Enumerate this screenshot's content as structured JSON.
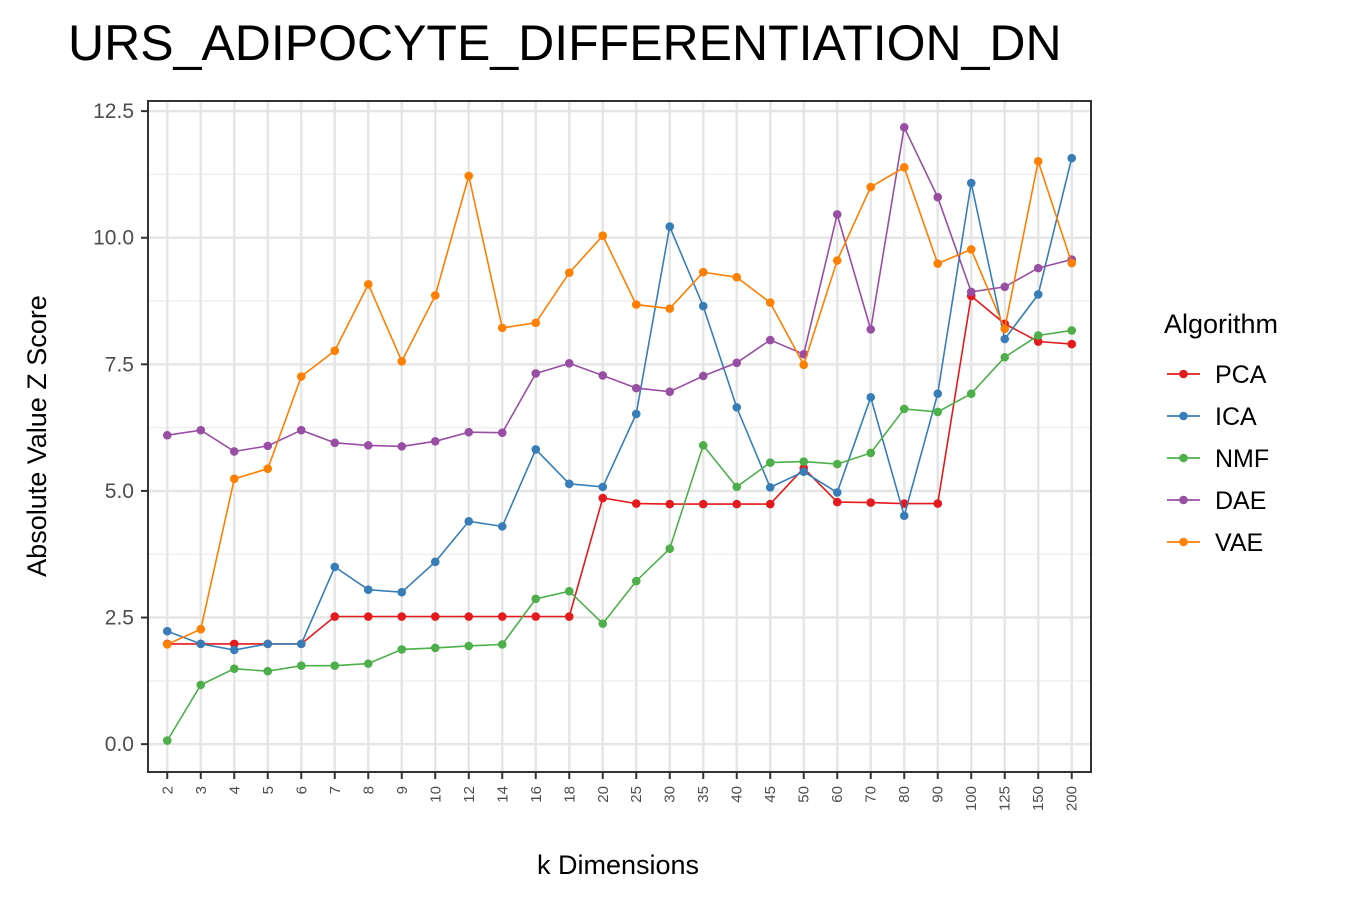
{
  "chart_data": {
    "type": "line",
    "title": "URS_ADIPOCYTE_DIFFERENTIATION_DN",
    "xlabel": "k Dimensions",
    "ylabel": "Absolute Value Z Score",
    "categories": [
      "2",
      "3",
      "4",
      "5",
      "6",
      "7",
      "8",
      "9",
      "10",
      "12",
      "14",
      "16",
      "18",
      "20",
      "25",
      "30",
      "35",
      "40",
      "45",
      "50",
      "60",
      "70",
      "80",
      "90",
      "100",
      "125",
      "150",
      "200"
    ],
    "ylim": [
      -0.55,
      12.7
    ],
    "yticks": [
      0.0,
      2.5,
      5.0,
      7.5,
      10.0,
      12.5
    ],
    "ytick_labels": [
      "0.0",
      "2.5",
      "5.0",
      "7.5",
      "10.0",
      "12.5"
    ],
    "grid": true,
    "legend": {
      "title": "Algorithm",
      "position": "right"
    },
    "series": [
      {
        "name": "PCA",
        "color": "#e41a1c",
        "values": [
          1.98,
          1.98,
          1.98,
          1.98,
          1.98,
          2.52,
          2.52,
          2.52,
          2.52,
          2.52,
          2.52,
          2.52,
          2.52,
          4.86,
          4.75,
          4.74,
          4.74,
          4.74,
          4.74,
          5.45,
          4.78,
          4.77,
          4.75,
          4.75,
          8.85,
          8.3,
          7.95,
          7.9
        ]
      },
      {
        "name": "ICA",
        "color": "#377eb8",
        "values": [
          2.23,
          1.98,
          1.86,
          1.98,
          1.98,
          3.5,
          3.05,
          3.0,
          3.6,
          4.4,
          4.3,
          5.82,
          5.14,
          5.08,
          6.52,
          10.22,
          8.65,
          6.65,
          5.07,
          5.38,
          4.97,
          6.85,
          4.51,
          6.92,
          11.08,
          8.0,
          8.88,
          11.57
        ]
      },
      {
        "name": "NMF",
        "color": "#4daf4a",
        "values": [
          0.07,
          1.17,
          1.49,
          1.44,
          1.55,
          1.55,
          1.59,
          1.87,
          1.9,
          1.94,
          1.97,
          2.87,
          3.02,
          2.38,
          3.22,
          3.86,
          5.9,
          5.08,
          5.56,
          5.58,
          5.53,
          5.75,
          6.62,
          6.56,
          6.92,
          7.64,
          8.07,
          8.17
        ]
      },
      {
        "name": "DAE",
        "color": "#984ea3",
        "values": [
          6.1,
          6.2,
          5.78,
          5.89,
          6.2,
          5.95,
          5.9,
          5.88,
          5.98,
          6.16,
          6.15,
          7.32,
          7.52,
          7.28,
          7.03,
          6.96,
          7.27,
          7.53,
          7.98,
          7.7,
          10.46,
          8.19,
          12.18,
          10.8,
          8.93,
          9.03,
          9.4,
          9.57
        ]
      },
      {
        "name": "VAE",
        "color": "#ff7f00",
        "values": [
          1.97,
          2.27,
          5.24,
          5.44,
          7.26,
          7.77,
          9.08,
          7.56,
          8.86,
          11.22,
          8.22,
          8.32,
          9.31,
          10.04,
          8.68,
          8.6,
          9.32,
          9.22,
          8.72,
          7.49,
          9.55,
          11.0,
          11.39,
          9.49,
          9.77,
          8.2,
          11.51,
          9.5
        ]
      }
    ]
  }
}
